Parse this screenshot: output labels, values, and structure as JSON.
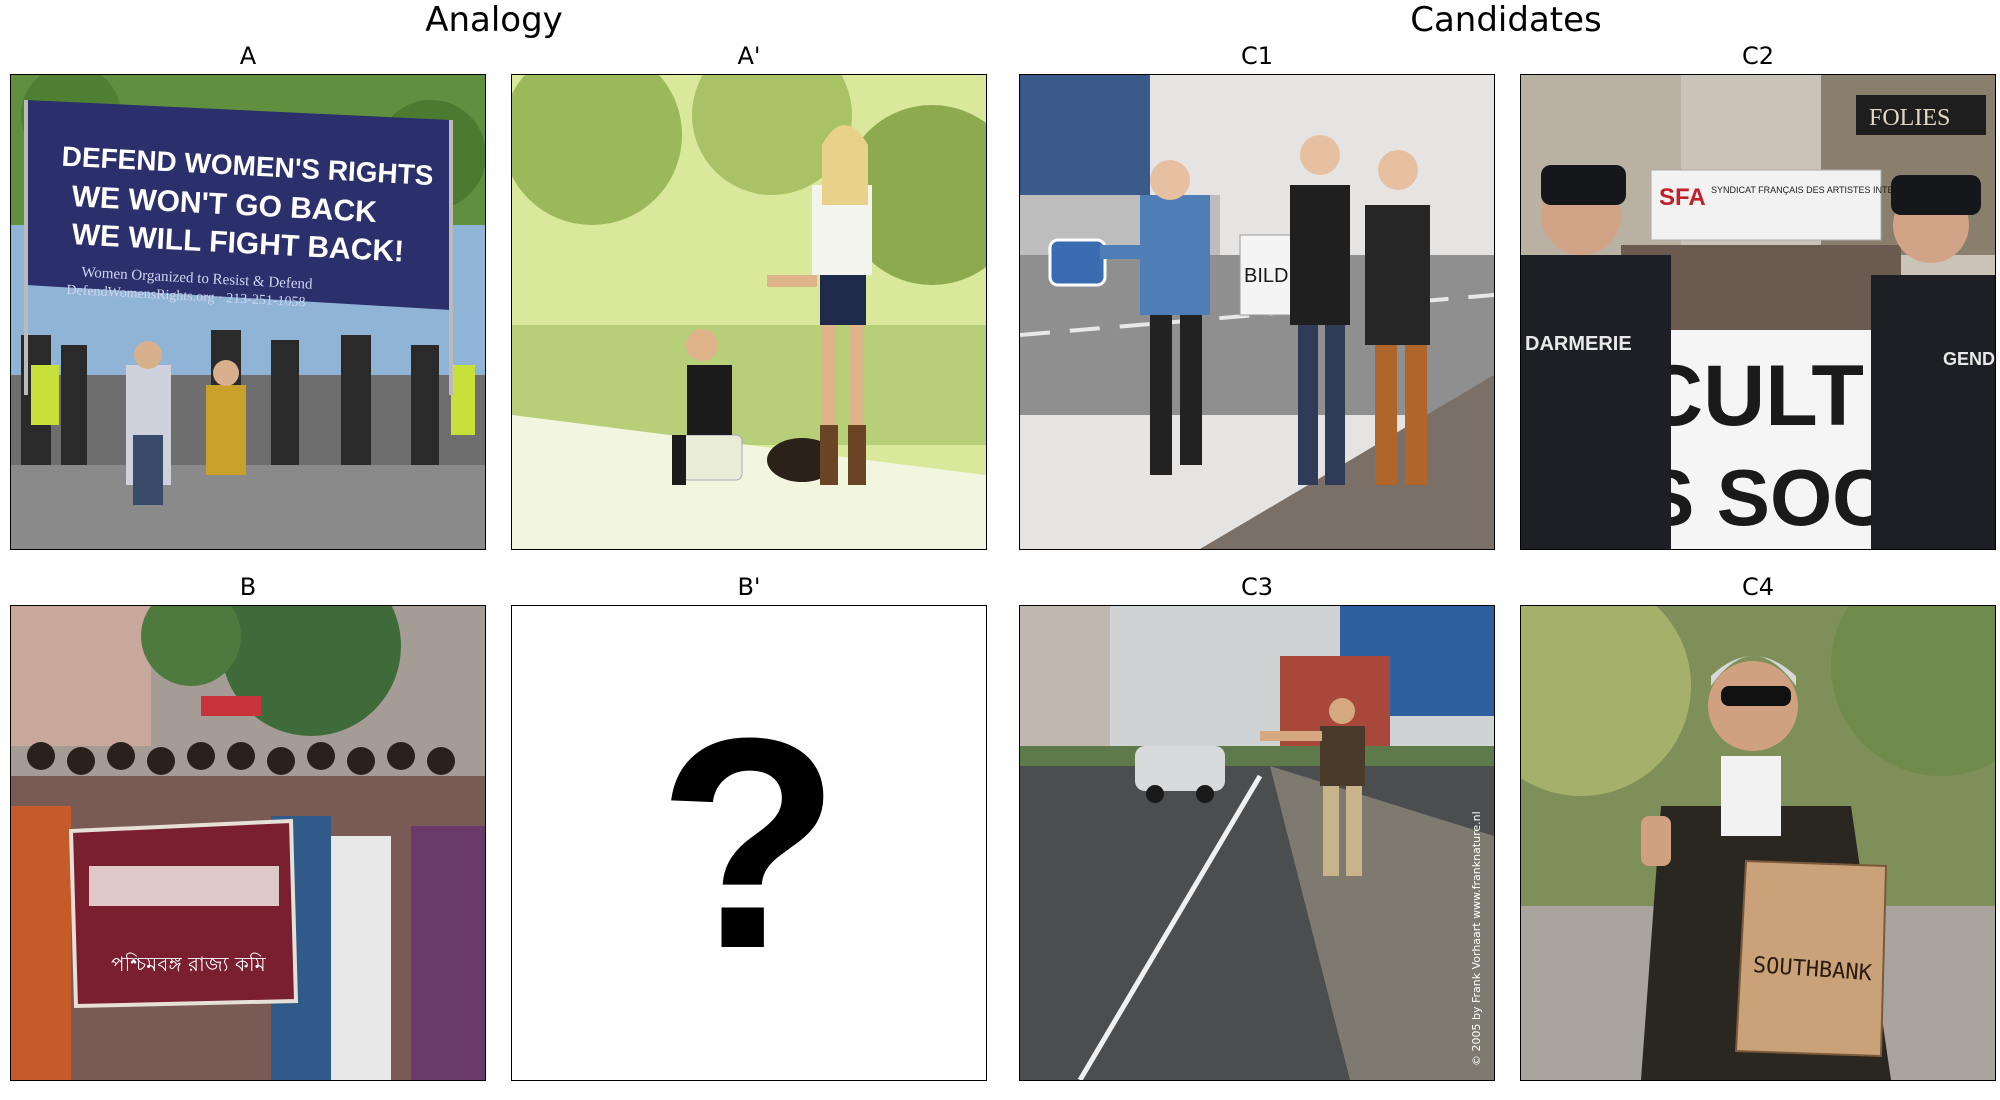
{
  "titles": {
    "analogy": "Analogy",
    "candidates": "Candidates"
  },
  "panels": {
    "A": {
      "label": "A",
      "banner_line1": "DEFEND WOMEN'S RIGHTS",
      "banner_line2": "WE WON'T GO BACK",
      "banner_line3": "WE WILL FIGHT BACK!",
      "banner_small1": "Women Organized to Resist & Defend",
      "banner_small2": "DefendWomensRights.org · 213-251-1058"
    },
    "A_prime": {
      "label": "A'"
    },
    "B": {
      "label": "B",
      "banner_text": "পশ্চিমবঙ্গ রাজ্য কমি"
    },
    "B_prime": {
      "label": "B'",
      "placeholder": "?"
    },
    "C1": {
      "label": "C1",
      "sign_text": "BILDUNG"
    },
    "C2": {
      "label": "C2",
      "storefront": "FOLIES",
      "banner_text": "SYNDICAT FRANÇAIS DES ARTISTES INTERPRÈTES",
      "banner_logo": "SFA",
      "front_banner": "CULT",
      "front_banner2": "S SOC",
      "uniform_left": "DARMERIE",
      "uniform_right": "GENDA"
    },
    "C3": {
      "label": "C3",
      "watermark": "© 2005 by Frank Vorhaart  www.franknature.nl"
    },
    "C4": {
      "label": "C4",
      "sign_text": "SOUTHBANK"
    }
  },
  "colors": {
    "banner_navy": "#2b2f6b",
    "banner_maroon": "#7a1f2f",
    "sky": "#a9c6e0"
  }
}
